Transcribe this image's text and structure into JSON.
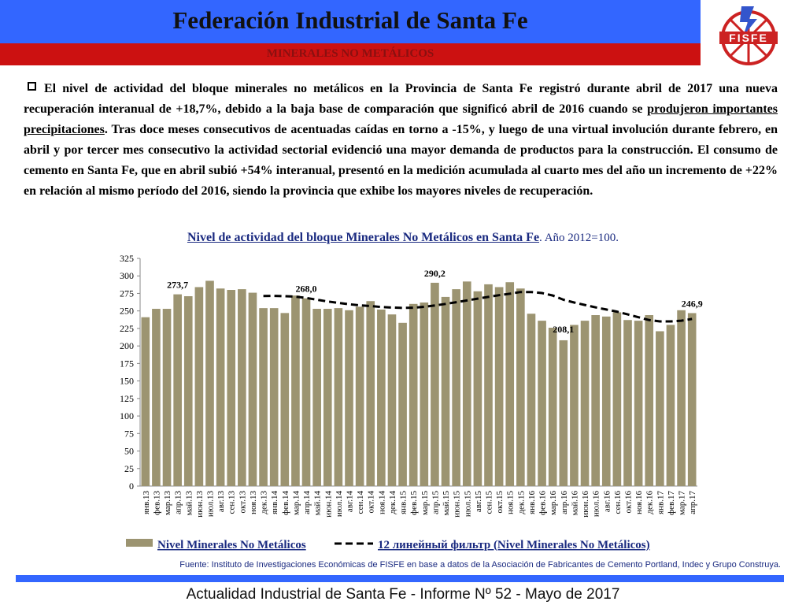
{
  "header": {
    "title": "Federación Industrial de Santa Fe",
    "section": "MINERALES NO METÁLICOS",
    "logo_text": "FISFE"
  },
  "intro": {
    "p1": "El nivel de actividad del bloque minerales no metálicos en la Provincia de Santa Fe registró durante abril de 2017 una nueva recuperación interanual de +18,7%, debido a la baja base de comparación que significó abril de 2016 cuando se ",
    "p1_u": "produjeron importantes precipitaciones",
    "p2": ". Tras doce meses consecutivos de acentuadas caídas en torno a -15%, y luego de una virtual involución durante febrero, en abril  y por tercer mes consecutivo la actividad sectorial evidenció una mayor demanda de productos para la construcción. El consumo de cemento en Santa Fe, que en abril subió +54% interanual, presentó en la medición acumulada al cuarto mes del año un incremento de +22% en relación al mismo período del 2016, siendo la provincia que exhibe los mayores niveles de recuperación."
  },
  "chart_title": {
    "main": "Nivel de actividad del bloque Minerales No Metálicos en Santa Fe",
    "sub": ". Año 2012=100."
  },
  "chart_data": {
    "type": "bar",
    "categories": [
      "янв.13",
      "фев.13",
      "мар.13",
      "апр.13",
      "май.13",
      "июн.13",
      "июл.13",
      "авг.13",
      "сен.13",
      "окт.13",
      "ноя.13",
      "дек.13",
      "янв.14",
      "фев.14",
      "мар.14",
      "апр.14",
      "май.14",
      "июн.14",
      "июл.14",
      "авг.14",
      "сен.14",
      "окт.14",
      "ноя.14",
      "дек.14",
      "янв.15",
      "фев.15",
      "мар.15",
      "апр.15",
      "май.15",
      "июн.15",
      "июл.15",
      "авг.15",
      "сен.15",
      "окт.15",
      "ноя.15",
      "дек.15",
      "янв.16",
      "фев.16",
      "мар.16",
      "апр.16",
      "май.16",
      "июн.16",
      "июл.16",
      "авг.16",
      "сен.16",
      "окт.16",
      "ноя.16",
      "дек.16",
      "янв.17",
      "фев.17",
      "мар.17",
      "апр.17"
    ],
    "series": [
      {
        "name": "Nivel Minerales No Metálicos",
        "type": "bar",
        "color": "#9c9471",
        "values": [
          241,
          253,
          253,
          273.7,
          271,
          284,
          293,
          282,
          280,
          281,
          276,
          254,
          254,
          247,
          272,
          268,
          253,
          253,
          254,
          251,
          256,
          264,
          252,
          245,
          233,
          260,
          262,
          290.2,
          270,
          281,
          292,
          278,
          288,
          284,
          291,
          282,
          246,
          236,
          226,
          208.1,
          230,
          236,
          244,
          242,
          248,
          237,
          236,
          244,
          221,
          230,
          251,
          246.9
        ]
      },
      {
        "name": "12 линейный фильтр (Nivel Minerales No Metálicos)",
        "type": "line",
        "style": "dashed",
        "color": "#000000",
        "values": [
          null,
          null,
          null,
          null,
          null,
          null,
          null,
          null,
          null,
          null,
          null,
          271.2,
          271.5,
          271,
          270.3,
          268.5,
          266,
          263.5,
          261.5,
          259.5,
          258,
          257,
          255.6,
          254.8,
          254.3,
          254.6,
          255.8,
          257.8,
          260,
          262.5,
          265,
          267.5,
          270,
          272.5,
          274.5,
          277,
          277,
          275.5,
          272,
          266,
          262,
          258.5,
          255,
          252,
          249,
          245,
          241,
          237,
          235,
          235,
          236,
          238.5
        ]
      }
    ],
    "data_labels": [
      {
        "category": "апр.13",
        "text": "273,7"
      },
      {
        "category": "апр.14",
        "text": "268,0"
      },
      {
        "category": "апр.15",
        "text": "290,2"
      },
      {
        "category": "апр.16",
        "text": "208,1"
      },
      {
        "category": "апр.17",
        "text": "246,9"
      }
    ],
    "ylim": [
      0,
      325
    ],
    "yticks": [
      "0",
      "25",
      "50",
      "75",
      "100",
      "125",
      "150",
      "175",
      "200",
      "225",
      "250",
      "275",
      "300",
      "325"
    ],
    "grid": false,
    "legend": "bottom"
  },
  "source": "Fuente: Instituto de Investigaciones Económicas de FISFE en base a datos de la Asociación de Fabricantes de Cemento Portland, Indec y Grupo Construya.",
  "footer": "Actualidad Industrial de Santa Fe - Informe Nº 52 - Mayo de 2017"
}
